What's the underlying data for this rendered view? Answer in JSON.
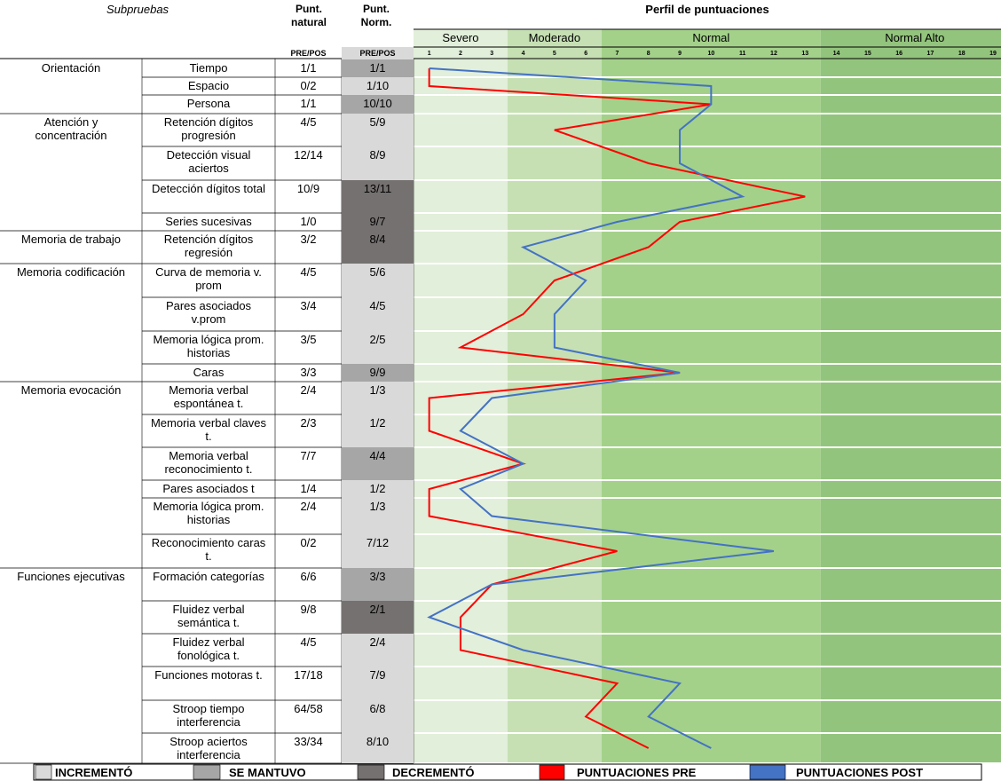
{
  "header": {
    "subtests": "Subpruebas",
    "natural": "Punt. natural",
    "norm": "Punt. Norm.",
    "prepos": "PRE/POS",
    "profile": "Perfil de puntuaciones"
  },
  "profile": {
    "bands": [
      {
        "label": "Severo",
        "from": 1,
        "to": 3,
        "color": "#e2efda"
      },
      {
        "label": "Moderado",
        "from": 4,
        "to": 6,
        "color": "#c6e0b4"
      },
      {
        "label": "Normal",
        "from": 7,
        "to": 13,
        "color": "#a3d18a"
      },
      {
        "label": "Normal Alto",
        "from": 14,
        "to": 19,
        "color": "#93c47d"
      }
    ],
    "scores": [
      1,
      2,
      3,
      4,
      5,
      6,
      7,
      8,
      9,
      10,
      11,
      12,
      13,
      14,
      15,
      16,
      17,
      18,
      19
    ],
    "series": [
      {
        "name": "PUNTUACIONES PRE",
        "color": "#ff0000",
        "values": [
          1,
          1,
          10,
          5,
          8,
          13,
          9,
          8,
          5,
          4,
          2,
          9,
          1,
          1,
          4,
          1,
          1,
          7,
          3,
          2,
          2,
          7,
          6,
          8
        ]
      },
      {
        "name": "PUNTUACIONES POST",
        "color": "#4472c4",
        "values": [
          1,
          10,
          10,
          9,
          9,
          11,
          7,
          4,
          6,
          5,
          5,
          9,
          3,
          2,
          4,
          2,
          3,
          12,
          3,
          1,
          4,
          9,
          8,
          10
        ]
      }
    ]
  },
  "groups": [
    {
      "label": "Orientación",
      "rows": [
        {
          "name": "Tiempo",
          "natural": "1/1",
          "norm": "1/1",
          "color": "#a6a6a6"
        },
        {
          "name": "Espacio",
          "natural": "0/2",
          "norm": "1/10",
          "color": "#d9d9d9"
        },
        {
          "name": "Persona",
          "natural": "1/1",
          "norm": "10/10",
          "color": "#a6a6a6"
        }
      ]
    },
    {
      "label": "Atención y concentración",
      "rows": [
        {
          "name": "Retención dígitos progresión",
          "natural": "4/5",
          "norm": "5/9",
          "color": "#d9d9d9"
        },
        {
          "name": "Detección visual aciertos",
          "natural": "12/14",
          "norm": "8/9",
          "color": "#d9d9d9"
        },
        {
          "name": "Detección dígitos total",
          "natural": "10/9",
          "norm": "13/11",
          "color": "#767171"
        },
        {
          "name": "Series sucesivas",
          "natural": "1/0",
          "norm": "9/7",
          "color": "#767171"
        }
      ]
    },
    {
      "label": "Memoria de trabajo",
      "rows": [
        {
          "name": "Retención dígitos regresión",
          "natural": "3/2",
          "norm": "8/4",
          "color": "#767171"
        }
      ]
    },
    {
      "label": "Memoria codificación",
      "rows": [
        {
          "name": "Curva de memoria v. prom",
          "natural": "4/5",
          "norm": "5/6",
          "color": "#d9d9d9"
        },
        {
          "name": "Pares asociados v.prom",
          "natural": "3/4",
          "norm": "4/5",
          "color": "#d9d9d9"
        },
        {
          "name": "Memoria lógica prom. historias",
          "natural": "3/5",
          "norm": "2/5",
          "color": "#d9d9d9"
        },
        {
          "name": "Caras",
          "natural": "3/3",
          "norm": "9/9",
          "color": "#a6a6a6"
        }
      ]
    },
    {
      "label": "Memoria evocación",
      "rows": [
        {
          "name": "Memoria verbal espontánea t.",
          "natural": "2/4",
          "norm": "1/3",
          "color": "#d9d9d9"
        },
        {
          "name": "Memoria verbal claves t.",
          "natural": "2/3",
          "norm": "1/2",
          "color": "#d9d9d9"
        },
        {
          "name": "Memoria verbal reconocimiento t.",
          "natural": "7/7",
          "norm": "4/4",
          "color": "#a6a6a6"
        },
        {
          "name": "Pares asociados t",
          "natural": "1/4",
          "norm": "1/2",
          "color": "#d9d9d9"
        },
        {
          "name": "Memoria lógica prom. historias",
          "natural": "2/4",
          "norm": "1/3",
          "color": "#d9d9d9"
        },
        {
          "name": "Reconocimiento caras t.",
          "natural": "0/2",
          "norm": "7/12",
          "color": "#d9d9d9"
        }
      ]
    },
    {
      "label": "Funciones ejecutivas",
      "rows": [
        {
          "name": "Formación categorías",
          "natural": "6/6",
          "norm": "3/3",
          "color": "#a6a6a6"
        },
        {
          "name": "Fluidez verbal semántica t.",
          "natural": "9/8",
          "norm": "2/1",
          "color": "#767171"
        },
        {
          "name": "Fluidez verbal fonológica t.",
          "natural": "4/5",
          "norm": "2/4",
          "color": "#d9d9d9"
        },
        {
          "name": "Funciones motoras t.",
          "natural": "17/18",
          "norm": "7/9",
          "color": "#d9d9d9"
        },
        {
          "name": "Stroop tiempo interferencia",
          "natural": "64/58",
          "norm": "6/8",
          "color": "#d9d9d9"
        },
        {
          "name": "Stroop aciertos interferencia",
          "natural": "33/34",
          "norm": "8/10",
          "color": "#d9d9d9"
        }
      ]
    }
  ],
  "legend": [
    {
      "label": "INCREMENTÓ",
      "color": "#d9d9d9"
    },
    {
      "label": "SE MANTUVO",
      "color": "#a6a6a6"
    },
    {
      "label": "DECREMENTÓ",
      "color": "#767171"
    }
  ]
}
